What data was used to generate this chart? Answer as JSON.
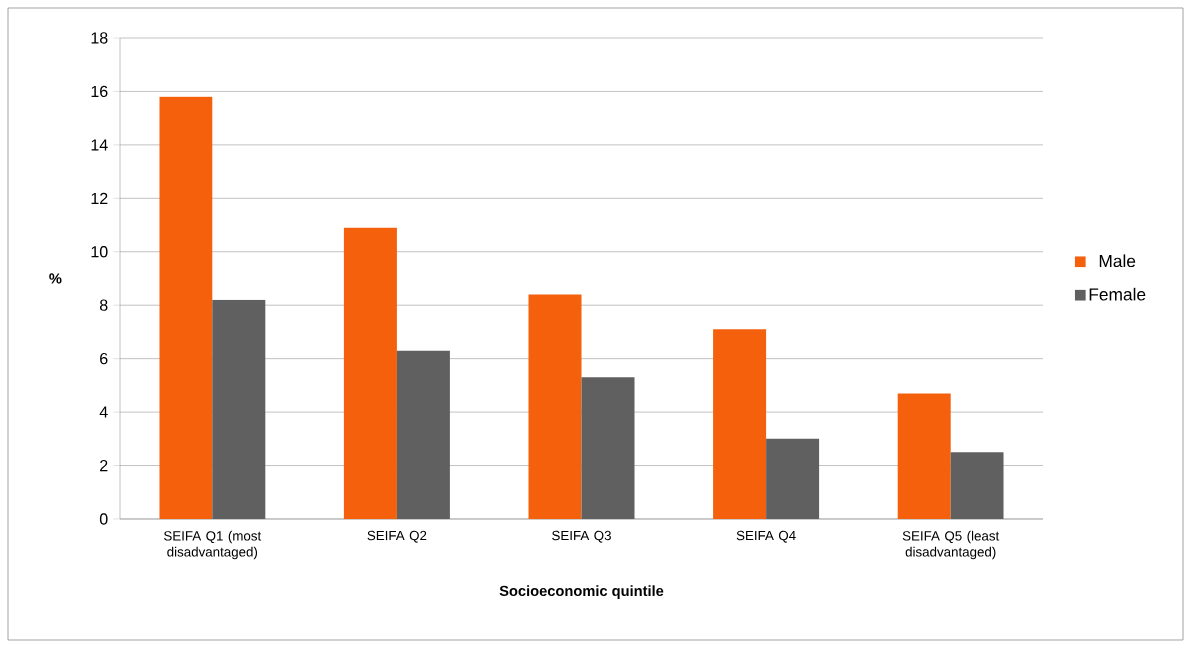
{
  "chart_data": {
    "type": "bar",
    "categories": [
      "SEIFA Q1 (most disadvantaged)",
      "SEIFA Q2",
      "SEIFA Q3",
      "SEIFA Q4",
      "SEIFA Q5 (least disadvantaged)"
    ],
    "series": [
      {
        "name": "Male",
        "color": "#f4600c",
        "values": [
          15.8,
          10.9,
          8.4,
          7.1,
          4.7
        ]
      },
      {
        "name": "Female",
        "color": "#606060",
        "values": [
          8.2,
          6.3,
          5.3,
          3.0,
          2.5
        ]
      }
    ],
    "xlabel": "Socioeconomic quintile",
    "ylabel": "%",
    "ylim": [
      0,
      18
    ],
    "yticks": [
      0,
      2,
      4,
      6,
      8,
      10,
      12,
      14,
      16,
      18
    ],
    "grid": "y",
    "legend": "right"
  }
}
